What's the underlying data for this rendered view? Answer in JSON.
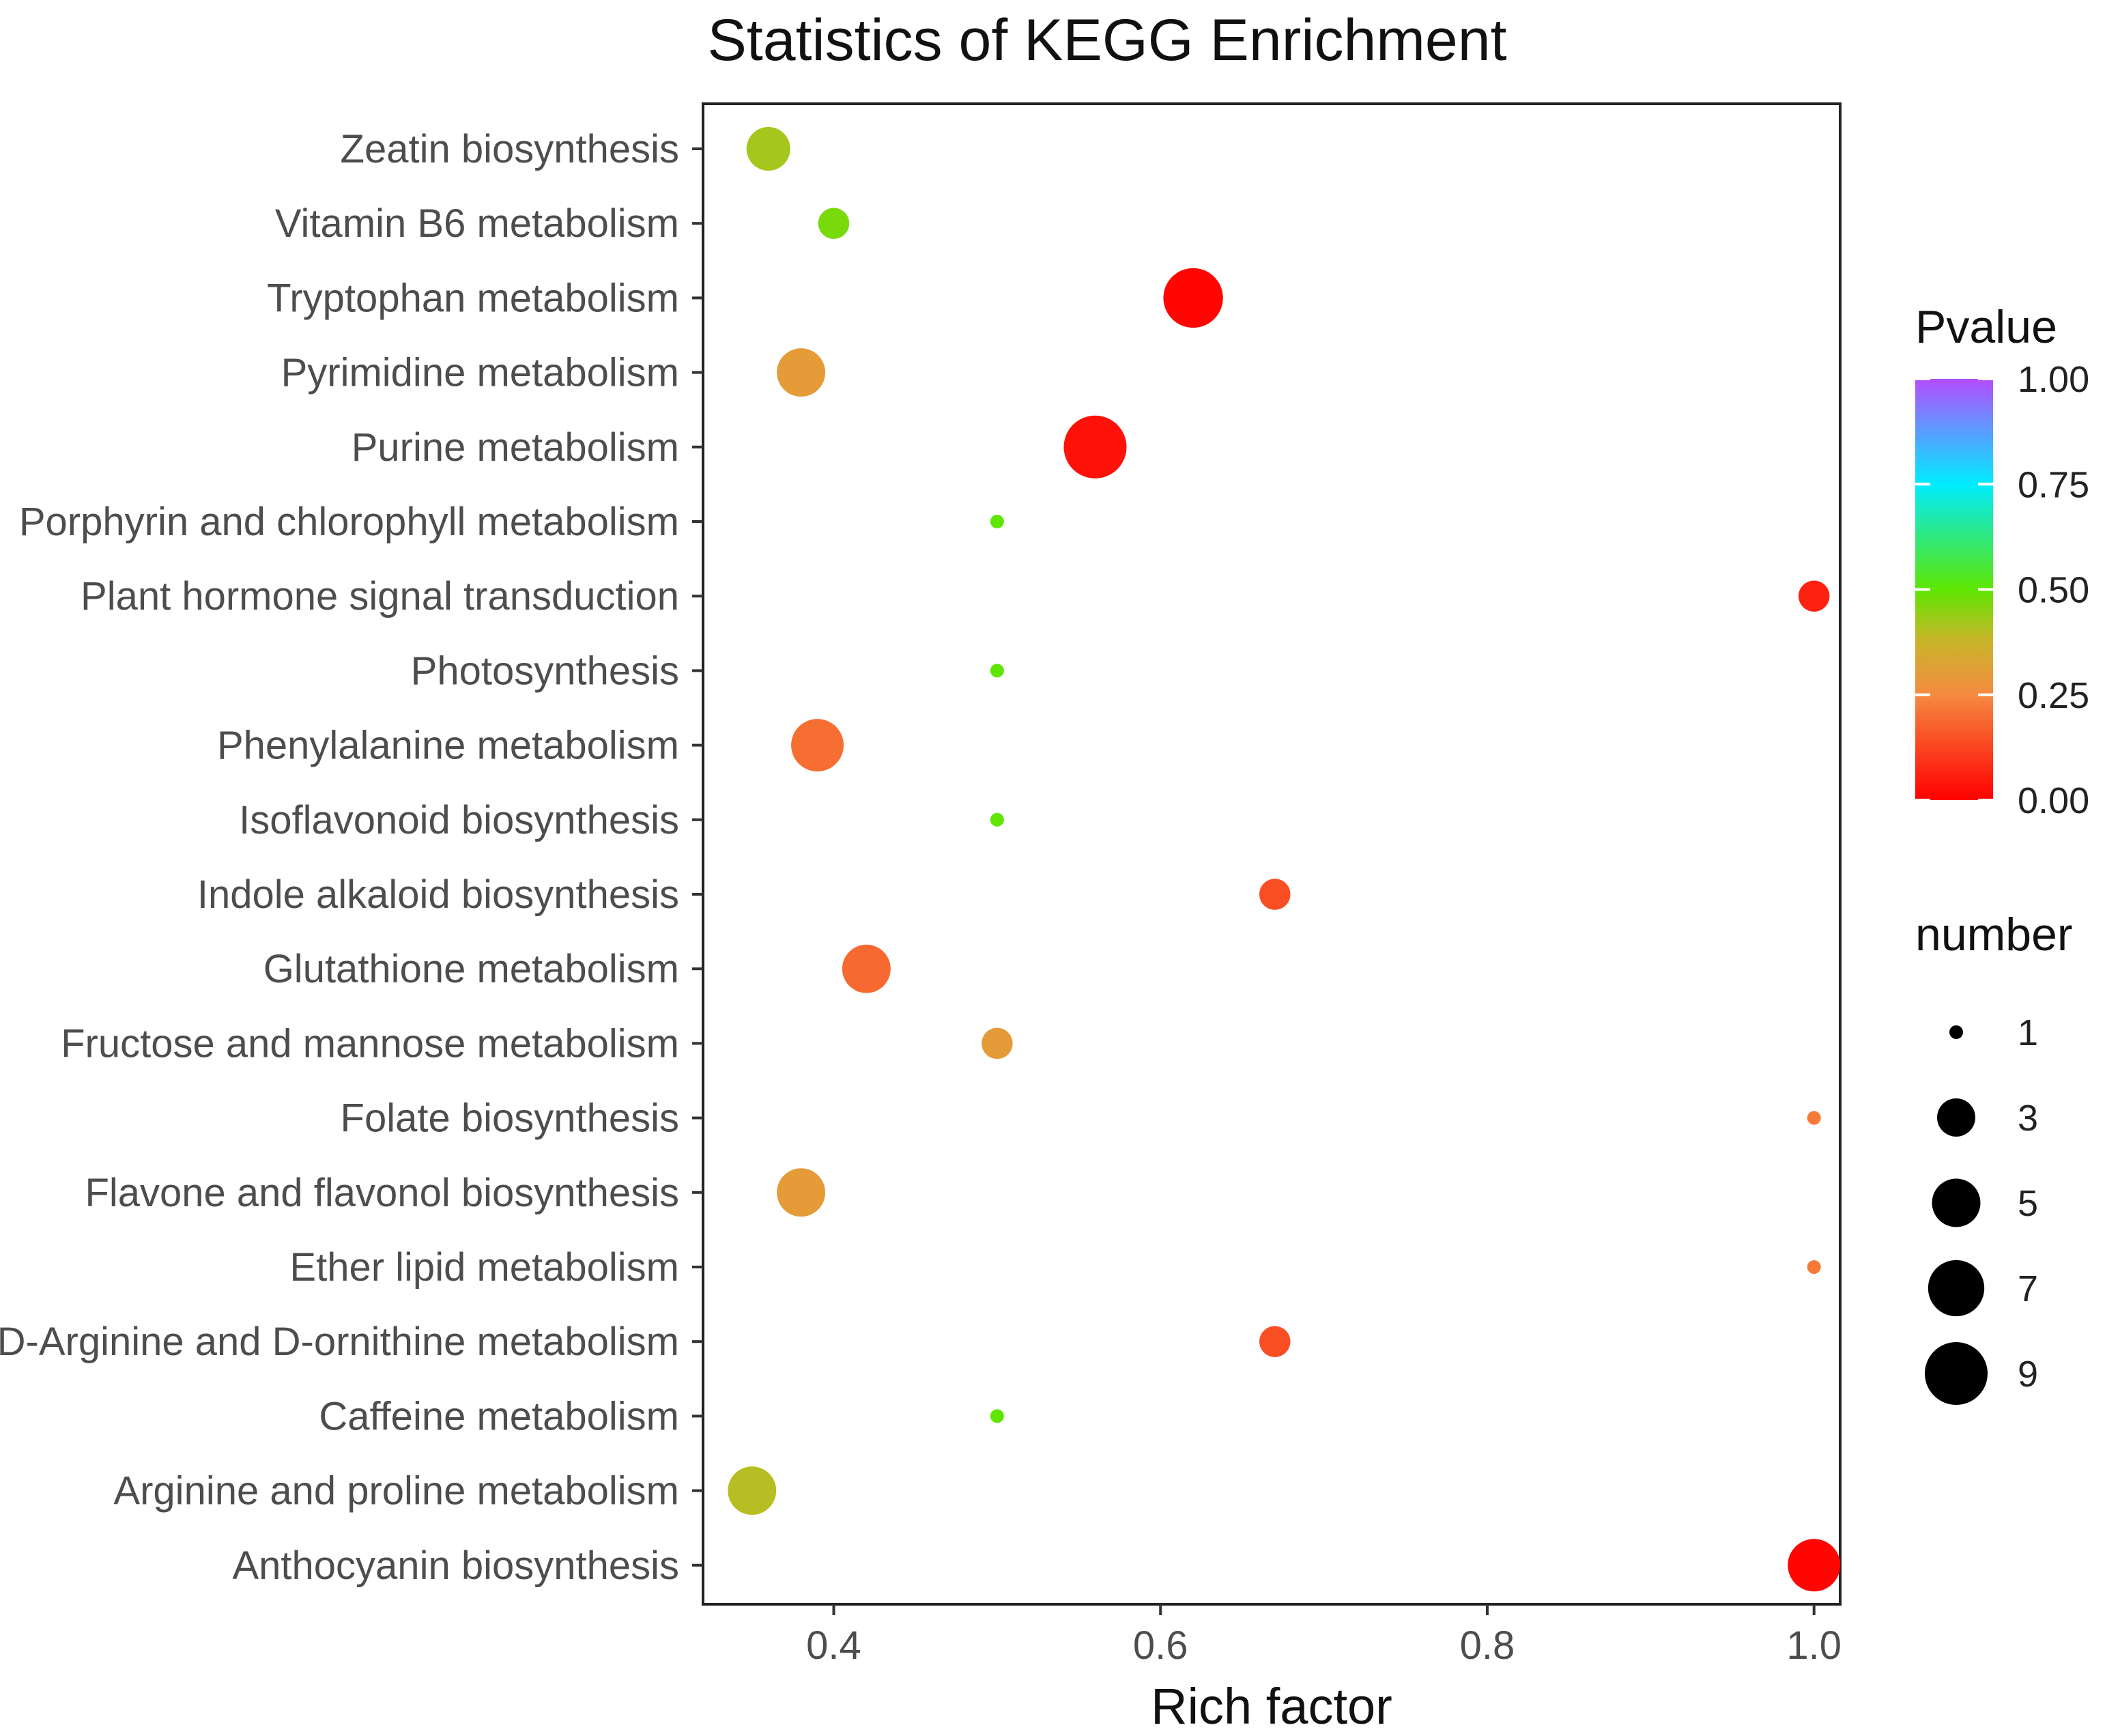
{
  "chart_data": {
    "type": "scatter",
    "title": "Statistics of KEGG Enrichment",
    "xlabel": "Rich factor",
    "ylabel": "",
    "xlim": [
      0.32,
      1.016
    ],
    "x_ticks": [
      0.4,
      0.6,
      0.8,
      1.0
    ],
    "x_tick_labels": [
      "0.4",
      "0.6",
      "0.8",
      "1.0"
    ],
    "categories": [
      "Zeatin biosynthesis",
      "Vitamin B6 metabolism",
      "Tryptophan metabolism",
      "Pyrimidine metabolism",
      "Purine metabolism",
      "Porphyrin and chlorophyll metabolism",
      "Plant hormone signal transduction",
      "Photosynthesis",
      "Phenylalanine metabolism",
      "Isoflavonoid biosynthesis",
      "Indole alkaloid biosynthesis",
      "Glutathione metabolism",
      "Fructose and mannose metabolism",
      "Folate biosynthesis",
      "Flavone and flavonol biosynthesis",
      "Ether lipid metabolism",
      "D-Arginine and D-ornithine metabolism",
      "Caffeine metabolism",
      "Arginine and proline metabolism",
      "Anthocyanin biosynthesis"
    ],
    "points": [
      {
        "category": "Zeatin biosynthesis",
        "rich_factor": 0.36,
        "number": 4,
        "pvalue": 0.42
      },
      {
        "category": "Vitamin B6 metabolism",
        "rich_factor": 0.4,
        "number": 2,
        "pvalue": 0.47
      },
      {
        "category": "Tryptophan metabolism",
        "rich_factor": 0.62,
        "number": 8,
        "pvalue": 0.01
      },
      {
        "category": "Pyrimidine metabolism",
        "rich_factor": 0.38,
        "number": 5,
        "pvalue": 0.3
      },
      {
        "category": "Purine metabolism",
        "rich_factor": 0.56,
        "number": 9,
        "pvalue": 0.03
      },
      {
        "category": "Porphyrin and chlorophyll metabolism",
        "rich_factor": 0.5,
        "number": 1,
        "pvalue": 0.5
      },
      {
        "category": "Plant hormone signal transduction",
        "rich_factor": 1.0,
        "number": 2,
        "pvalue": 0.06
      },
      {
        "category": "Photosynthesis",
        "rich_factor": 0.5,
        "number": 1,
        "pvalue": 0.5
      },
      {
        "category": "Phenylalanine metabolism",
        "rich_factor": 0.39,
        "number": 6,
        "pvalue": 0.2
      },
      {
        "category": "Isoflavonoid biosynthesis",
        "rich_factor": 0.5,
        "number": 1,
        "pvalue": 0.5
      },
      {
        "category": "Indole alkaloid biosynthesis",
        "rich_factor": 0.67,
        "number": 2,
        "pvalue": 0.14
      },
      {
        "category": "Glutathione metabolism",
        "rich_factor": 0.42,
        "number": 5,
        "pvalue": 0.19
      },
      {
        "category": "Fructose and mannose metabolism",
        "rich_factor": 0.5,
        "number": 2,
        "pvalue": 0.3
      },
      {
        "category": "Folate biosynthesis",
        "rich_factor": 1.0,
        "number": 1,
        "pvalue": 0.22
      },
      {
        "category": "Flavone and flavonol biosynthesis",
        "rich_factor": 0.38,
        "number": 5,
        "pvalue": 0.3
      },
      {
        "category": "Ether lipid metabolism",
        "rich_factor": 1.0,
        "number": 1,
        "pvalue": 0.22
      },
      {
        "category": "D-Arginine and D-ornithine metabolism",
        "rich_factor": 0.67,
        "number": 2,
        "pvalue": 0.14
      },
      {
        "category": "Caffeine metabolism",
        "rich_factor": 0.5,
        "number": 1,
        "pvalue": 0.5
      },
      {
        "category": "Arginine and proline metabolism",
        "rich_factor": 0.35,
        "number": 5,
        "pvalue": 0.4
      },
      {
        "category": "Anthocyanin biosynthesis",
        "rich_factor": 1.0,
        "number": 6,
        "pvalue": 0.01
      }
    ],
    "color_legend": {
      "title": "Pvalue",
      "range": [
        0.0,
        1.0
      ],
      "ticks": [
        0.0,
        0.25,
        0.5,
        0.75,
        1.0
      ],
      "tick_labels": [
        "0.00",
        "0.25",
        "0.50",
        "0.75",
        "1.00"
      ],
      "gradient": [
        {
          "value": 0.0,
          "color": "#ff0000"
        },
        {
          "value": 0.25,
          "color": "#f58a40"
        },
        {
          "value": 0.38,
          "color": "#c8b62a"
        },
        {
          "value": 0.5,
          "color": "#5ee600"
        },
        {
          "value": 0.75,
          "color": "#00ecff"
        },
        {
          "value": 1.0,
          "color": "#b44dff"
        }
      ]
    },
    "size_legend": {
      "title": "number",
      "values": [
        1,
        3,
        5,
        7,
        9
      ],
      "labels": [
        "1",
        "3",
        "5",
        "7",
        "9"
      ],
      "color": "#000000"
    }
  }
}
